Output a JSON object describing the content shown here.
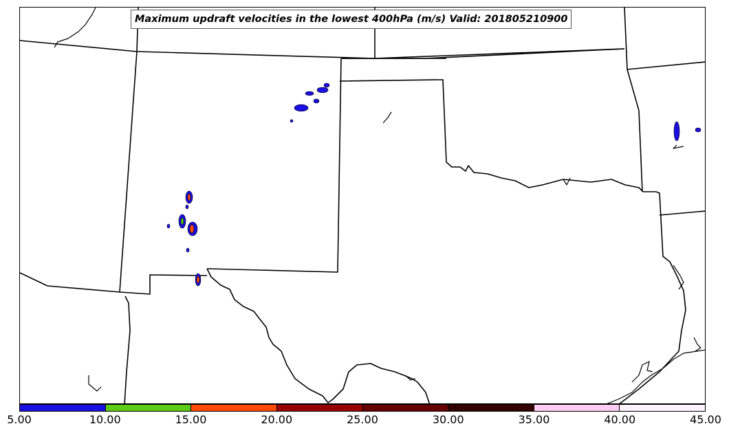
{
  "title": "Maximum updraft velocities in the lowest 400hPa (m/s) Valid: 201805210900",
  "colorbar": {
    "labels": [
      "5.00",
      "10.00",
      "15.00",
      "20.00",
      "25.00",
      "30.00",
      "35.00",
      "40.00",
      "45.00"
    ],
    "colors": [
      "#1a0fe0",
      "#5ccd14",
      "#ff4a00",
      "#990000",
      "#660000",
      "#330000",
      "#ffccf2",
      "#fff2fb"
    ]
  }
}
